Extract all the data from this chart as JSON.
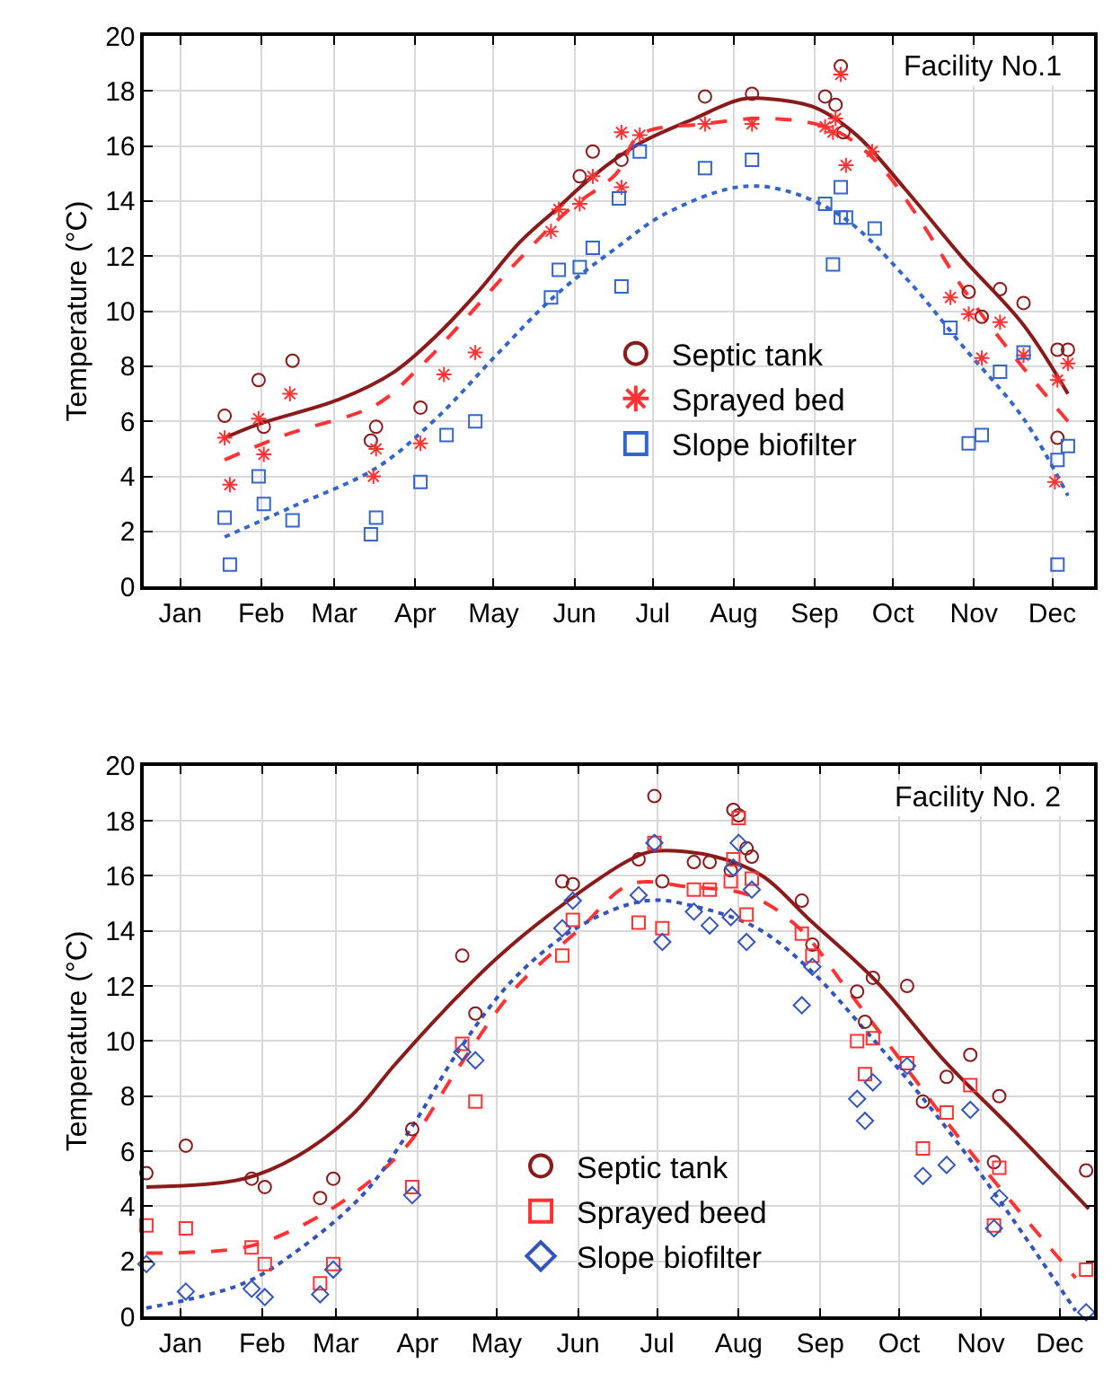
{
  "chart_data": [
    {
      "type": "scatter",
      "title": "Facility No.1",
      "ylabel": "Temperature (°C)",
      "xlim": [
        "--01-01",
        "--12-31"
      ],
      "ylim": [
        0,
        20
      ],
      "xticks": [
        {
          "value": "--01-15",
          "label": "Jan"
        },
        {
          "value": "--02-15",
          "label": "Feb"
        },
        {
          "value": "--03-15",
          "label": "Mar"
        },
        {
          "value": "--04-15",
          "label": "Apr"
        },
        {
          "value": "--05-15",
          "label": "May"
        },
        {
          "value": "--06-15",
          "label": "Jun"
        },
        {
          "value": "--07-15",
          "label": "Jul"
        },
        {
          "value": "--08-15",
          "label": "Aug"
        },
        {
          "value": "--09-15",
          "label": "Sep"
        },
        {
          "value": "--10-15",
          "label": "Oct"
        },
        {
          "value": "--11-15",
          "label": "Nov"
        },
        {
          "value": "--12-15",
          "label": "Dec"
        }
      ],
      "yticks": [
        0,
        2,
        4,
        6,
        8,
        10,
        12,
        14,
        16,
        18,
        20
      ],
      "grid": true,
      "legend": "bottom center",
      "series": [
        {
          "name": "Septic tank",
          "marker": "circle",
          "color": "#8b1a1a",
          "x": [
            "--02-01",
            "--02-14",
            "--02-27",
            "--02-16",
            "--03-31",
            "--03-29",
            "--04-17",
            "--06-17",
            "--06-22",
            "--07-03",
            "--08-04",
            "--08-22",
            "--09-19",
            "--09-23",
            "--09-25",
            "--09-26",
            "--11-13",
            "--11-18",
            "--11-25",
            "--12-04",
            "--12-17",
            "--12-21",
            "--12-17"
          ],
          "values": [
            6.2,
            7.5,
            8.2,
            5.8,
            5.8,
            5.3,
            6.5,
            14.9,
            15.8,
            15.5,
            17.8,
            17.9,
            17.8,
            17.5,
            18.9,
            16.5,
            10.7,
            9.8,
            10.8,
            10.3,
            8.6,
            8.6,
            5.4
          ]
        },
        {
          "name": "Sprayed bed",
          "marker": "cross",
          "color": "#ff3333",
          "x": [
            "--02-01",
            "--02-03",
            "--02-14",
            "--02-16",
            "--02-26",
            "--03-30",
            "--03-31",
            "--04-17",
            "--04-26",
            "--05-08",
            "--06-06",
            "--06-09",
            "--06-17",
            "--06-22",
            "--07-03",
            "--07-03",
            "--07-10",
            "--08-04",
            "--08-22",
            "--09-19",
            "--09-22",
            "--09-23",
            "--09-25",
            "--09-27",
            "--10-07",
            "--11-06",
            "--11-13",
            "--11-18",
            "--11-25",
            "--12-04",
            "--12-17",
            "--12-21",
            "--12-16"
          ],
          "values": [
            5.4,
            3.7,
            6.1,
            4.8,
            7.0,
            4.0,
            5.0,
            5.2,
            7.7,
            8.5,
            12.9,
            13.7,
            13.9,
            14.9,
            16.5,
            14.5,
            16.4,
            16.8,
            16.8,
            16.7,
            16.5,
            17.0,
            18.6,
            15.3,
            15.8,
            10.5,
            9.9,
            8.3,
            9.6,
            8.4,
            7.5,
            8.1,
            3.8
          ]
        },
        {
          "name": "Slope biofilter",
          "marker": "square",
          "color": "#3366cc",
          "x": [
            "--02-01",
            "--02-03",
            "--02-14",
            "--02-16",
            "--02-27",
            "--03-29",
            "--03-31",
            "--04-17",
            "--04-27",
            "--05-08",
            "--06-06",
            "--06-09",
            "--06-17",
            "--06-22",
            "--07-03",
            "--07-02",
            "--07-10",
            "--08-04",
            "--08-22",
            "--09-19",
            "--09-22",
            "--09-25",
            "--09-25",
            "--09-27",
            "--10-08",
            "--11-06",
            "--11-13",
            "--11-18",
            "--11-25",
            "--12-04",
            "--12-17",
            "--12-21",
            "--12-17"
          ],
          "values": [
            2.5,
            0.8,
            4.0,
            3.0,
            2.4,
            1.9,
            2.5,
            3.8,
            5.5,
            6.0,
            10.5,
            11.5,
            11.6,
            12.3,
            10.9,
            14.1,
            15.8,
            15.2,
            15.5,
            13.9,
            11.7,
            14.5,
            13.4,
            13.4,
            13.0,
            9.4,
            5.2,
            5.5,
            7.8,
            8.5,
            4.6,
            5.1,
            0.8
          ]
        },
        {
          "type": "line",
          "line_style": "solid",
          "color": "#8b1a1a",
          "x": [
            "--02-01",
            "--02-14",
            "--03-17",
            "--04-07",
            "--04-23",
            "--05-09",
            "--05-25",
            "--06-08",
            "--06-22",
            "--07-10",
            "--07-31",
            "--08-18",
            "--08-30",
            "--09-15",
            "--10-01",
            "--10-20",
            "--11-11",
            "--12-04",
            "--12-21"
          ],
          "values": [
            5.4,
            5.9,
            6.8,
            7.8,
            9.1,
            10.7,
            12.5,
            13.7,
            14.9,
            16.1,
            17.0,
            17.7,
            17.7,
            17.4,
            16.4,
            14.4,
            11.9,
            9.5,
            7.0
          ]
        },
        {
          "type": "line",
          "line_style": "dashed",
          "color": "#ff3333",
          "x": [
            "--02-01",
            "--02-24",
            "--03-31",
            "--04-16",
            "--05-04",
            "--05-25",
            "--06-13",
            "--07-01",
            "--07-10",
            "--08-03",
            "--08-30",
            "--09-22",
            "--10-08",
            "--10-24",
            "--11-11",
            "--11-30",
            "--12-21"
          ],
          "values": [
            4.6,
            5.5,
            6.6,
            7.9,
            9.7,
            11.9,
            13.7,
            15.0,
            16.4,
            16.8,
            17.0,
            16.6,
            15.5,
            13.5,
            10.8,
            8.4,
            6.0
          ]
        },
        {
          "type": "line",
          "line_style": "dotted",
          "color": "#3366cc",
          "x": [
            "--02-01",
            "--02-27",
            "--03-31",
            "--04-23",
            "--05-16",
            "--06-08",
            "--07-01",
            "--07-19",
            "--08-16",
            "--09-03",
            "--09-26",
            "--10-20",
            "--11-11",
            "--12-04",
            "--12-21"
          ],
          "values": [
            1.8,
            2.9,
            4.3,
            6.1,
            8.4,
            10.6,
            12.3,
            13.5,
            14.5,
            14.4,
            13.4,
            11.2,
            8.7,
            6.1,
            3.3
          ]
        }
      ]
    },
    {
      "type": "scatter",
      "title": "Facility No. 2",
      "ylabel": "Temperature (°C)",
      "xlim": [
        "--01-01",
        "--12-28"
      ],
      "ylim": [
        0,
        20
      ],
      "xticks": [
        {
          "value": "--01-15",
          "label": "Jan"
        },
        {
          "value": "--02-15",
          "label": "Feb"
        },
        {
          "value": "--03-15",
          "label": "Mar"
        },
        {
          "value": "--04-15",
          "label": "Apr"
        },
        {
          "value": "--05-15",
          "label": "May"
        },
        {
          "value": "--06-15",
          "label": "Jun"
        },
        {
          "value": "--07-15",
          "label": "Jul"
        },
        {
          "value": "--08-15",
          "label": "Aug"
        },
        {
          "value": "--09-15",
          "label": "Sep"
        },
        {
          "value": "--10-15",
          "label": "Oct"
        },
        {
          "value": "--11-15",
          "label": "Nov"
        },
        {
          "value": "--12-15",
          "label": "Dec"
        }
      ],
      "yticks": [
        0,
        2,
        4,
        6,
        8,
        10,
        12,
        14,
        16,
        18,
        20
      ],
      "grid": true,
      "legend": "bottom left",
      "series": [
        {
          "name": "Septic tank",
          "marker": "circle",
          "color": "#8b1a1a",
          "x": [
            "--01-02",
            "--01-17",
            "--02-11",
            "--02-16",
            "--03-09",
            "--03-14",
            "--04-13",
            "--05-02",
            "--05-07",
            "--06-09",
            "--06-13",
            "--07-08",
            "--07-14",
            "--07-17",
            "--07-29",
            "--08-04",
            "--08-13",
            "--08-15",
            "--08-12",
            "--08-18",
            "--08-20",
            "--09-08",
            "--09-12",
            "--09-29",
            "--10-02",
            "--10-05",
            "--10-18",
            "--10-24",
            "--11-02",
            "--11-11",
            "--11-22",
            "--11-20",
            "--12-25"
          ],
          "values": [
            5.2,
            6.2,
            5.0,
            4.7,
            4.3,
            5.0,
            6.8,
            13.1,
            11.0,
            15.8,
            15.7,
            16.6,
            18.9,
            15.8,
            16.5,
            16.5,
            18.4,
            18.2,
            16.2,
            17.0,
            16.7,
            15.1,
            13.5,
            11.8,
            10.7,
            12.3,
            12.0,
            7.8,
            8.7,
            9.5,
            8.0,
            5.6,
            5.3
          ]
        },
        {
          "name": "Sprayed beed",
          "marker": "square",
          "color": "#ff3333",
          "x": [
            "--01-02",
            "--01-17",
            "--02-11",
            "--02-16",
            "--03-09",
            "--03-14",
            "--04-13",
            "--05-02",
            "--05-07",
            "--06-09",
            "--06-13",
            "--07-08",
            "--07-14",
            "--07-17",
            "--07-29",
            "--08-04",
            "--08-12",
            "--08-13",
            "--08-15",
            "--08-20",
            "--08-18",
            "--09-08",
            "--09-12",
            "--09-29",
            "--10-05",
            "--10-02",
            "--10-18",
            "--10-24",
            "--11-02",
            "--11-11",
            "--11-22",
            "--11-20",
            "--12-25"
          ],
          "values": [
            3.3,
            3.2,
            2.5,
            1.9,
            1.2,
            1.9,
            4.7,
            9.9,
            7.8,
            13.1,
            14.4,
            14.3,
            17.2,
            14.1,
            15.5,
            15.5,
            15.8,
            16.6,
            18.1,
            15.9,
            14.6,
            13.9,
            13.1,
            10.0,
            10.1,
            8.8,
            9.2,
            6.1,
            7.4,
            8.4,
            5.4,
            3.3,
            1.7
          ]
        },
        {
          "name": "Slope biofilter",
          "marker": "diamond",
          "color": "#3355bb",
          "x": [
            "--01-02",
            "--01-17",
            "--02-11",
            "--02-16",
            "--03-09",
            "--03-14",
            "--04-13",
            "--05-02",
            "--05-07",
            "--06-09",
            "--06-13",
            "--07-08",
            "--07-14",
            "--07-17",
            "--07-29",
            "--08-04",
            "--08-12",
            "--08-13",
            "--08-15",
            "--08-20",
            "--08-18",
            "--09-08",
            "--09-12",
            "--09-29",
            "--10-02",
            "--10-05",
            "--10-18",
            "--10-24",
            "--11-02",
            "--11-11",
            "--11-22",
            "--11-20",
            "--12-25"
          ],
          "values": [
            1.9,
            0.9,
            1.0,
            0.7,
            0.8,
            1.7,
            4.4,
            9.6,
            9.3,
            14.1,
            15.1,
            15.3,
            17.2,
            13.6,
            14.7,
            14.2,
            14.5,
            16.3,
            17.2,
            15.5,
            13.6,
            11.3,
            12.7,
            7.9,
            7.1,
            8.5,
            9.1,
            5.1,
            5.5,
            7.5,
            4.3,
            3.2,
            0.15
          ]
        },
        {
          "type": "line",
          "line_style": "solid",
          "color": "#8b1a1a",
          "x": [
            "--01-02",
            "--02-08",
            "--02-28",
            "--03-21",
            "--04-06",
            "--04-24",
            "--05-15",
            "--06-07",
            "--07-05",
            "--07-14",
            "--08-06",
            "--08-24",
            "--09-11",
            "--10-07",
            "--11-01",
            "--11-28",
            "--12-26"
          ],
          "values": [
            4.7,
            5.0,
            5.8,
            7.3,
            9.1,
            11.0,
            13.0,
            14.8,
            16.6,
            16.9,
            16.7,
            16.0,
            14.4,
            12.1,
            9.3,
            6.7,
            3.9
          ]
        },
        {
          "type": "line",
          "line_style": "dashed",
          "color": "#ff3333",
          "x": [
            "--01-02",
            "--02-08",
            "--02-28",
            "--03-21",
            "--04-11",
            "--05-01",
            "--05-22",
            "--06-16",
            "--07-05",
            "--07-27",
            "--08-19",
            "--09-07",
            "--09-25",
            "--10-14",
            "--11-05",
            "--11-28",
            "--12-21"
          ],
          "values": [
            2.3,
            2.5,
            3.2,
            4.4,
            6.2,
            9.1,
            11.9,
            14.1,
            15.7,
            15.6,
            15.3,
            14.1,
            11.9,
            9.5,
            6.7,
            4.0,
            1.4
          ]
        },
        {
          "type": "line",
          "line_style": "dotted",
          "color": "#3355bb",
          "x": [
            "--01-02",
            "--02-08",
            "--03-02",
            "--03-26",
            "--04-13",
            "--05-01",
            "--05-22",
            "--06-16",
            "--07-11",
            "--07-29",
            "--08-22",
            "--09-11",
            "--10-02",
            "--10-25",
            "--11-17",
            "--12-21"
          ],
          "values": [
            0.3,
            1.2,
            2.5,
            4.5,
            6.9,
            9.7,
            12.3,
            14.2,
            15.1,
            14.9,
            14.1,
            12.6,
            10.4,
            7.8,
            4.9,
            0.2
          ]
        }
      ]
    }
  ]
}
